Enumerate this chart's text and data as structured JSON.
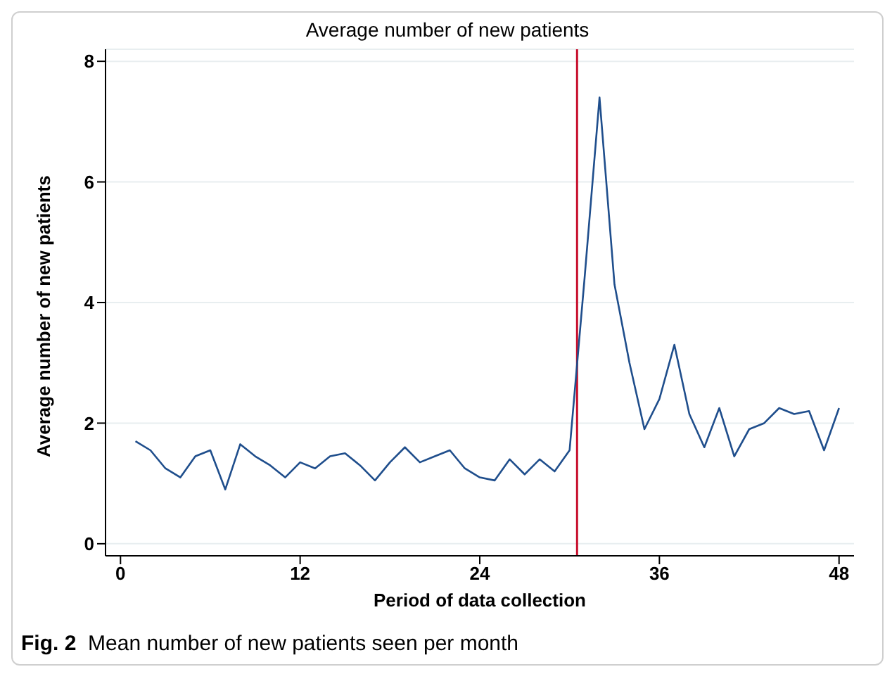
{
  "chart_data": {
    "type": "line",
    "title": "Average number of new patients",
    "xlabel": "Period of data collection",
    "ylabel": "Average number of new patients",
    "x": [
      1,
      2,
      3,
      4,
      5,
      6,
      7,
      8,
      9,
      10,
      11,
      12,
      13,
      14,
      15,
      16,
      17,
      18,
      19,
      20,
      21,
      22,
      23,
      24,
      25,
      26,
      27,
      28,
      29,
      30,
      31,
      32,
      33,
      34,
      35,
      36,
      37,
      38,
      39,
      40,
      41,
      42,
      43,
      44,
      45,
      46,
      47,
      48
    ],
    "series": [
      {
        "color": "#1f4e8c",
        "values": [
          1.7,
          1.55,
          1.25,
          1.1,
          1.45,
          1.55,
          0.9,
          1.65,
          1.45,
          1.3,
          1.1,
          1.35,
          1.25,
          1.45,
          1.5,
          1.3,
          1.05,
          1.35,
          1.6,
          1.35,
          1.45,
          1.55,
          1.25,
          1.1,
          1.05,
          1.4,
          1.15,
          1.4,
          1.2,
          1.55,
          4.4,
          7.4,
          4.3,
          3.0,
          1.9,
          2.4,
          3.3,
          2.15,
          1.6,
          2.25,
          1.45,
          1.9,
          2.0,
          2.25,
          2.15,
          2.2,
          1.55,
          2.25
        ]
      }
    ],
    "xlim": [
      -1,
      49
    ],
    "xticks": [
      0,
      12,
      24,
      36,
      48
    ],
    "ylim": [
      -0.2,
      8.2
    ],
    "yticks": [
      0,
      2,
      4,
      6,
      8
    ],
    "grid": "y",
    "marker": "none",
    "line_style": "solid",
    "legend": false,
    "ref_lines": [
      {
        "axis": "x",
        "value": 30.5,
        "color": "#c8102e"
      }
    ],
    "annotations": [
      "Fig. 2  Mean number of new patients seen per month"
    ]
  }
}
